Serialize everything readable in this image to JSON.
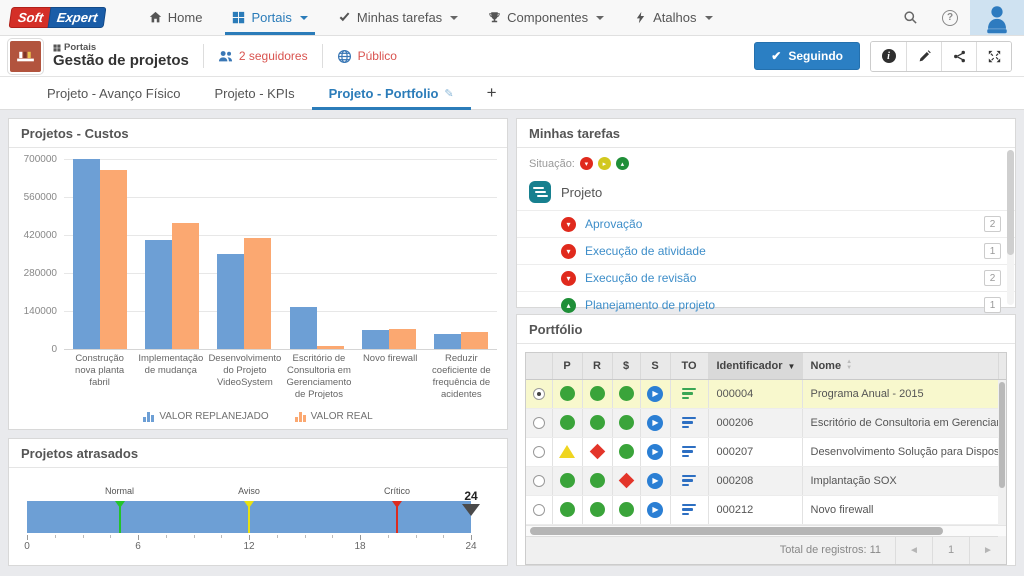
{
  "colors": {
    "accent_blue": "#2b7cb9",
    "series_blue": "#6d9fd5",
    "series_orange": "#fba871",
    "status_red": "#e02a1d",
    "status_yellow": "#d2c81e",
    "status_green": "#1f8f38",
    "selected_row_bg": "#f8f8cd",
    "link_blue": "#3e8ec9",
    "follow_btn_blue": "#2b7fc3",
    "logo_red": "#d42f27",
    "logo_blue": "#1a5da8"
  },
  "navbar": {
    "logo": {
      "soft": "Soft",
      "expert": "Expert"
    },
    "items": [
      {
        "label": "Home",
        "icon": "home-icon",
        "caret": false,
        "active": false
      },
      {
        "label": "Portais",
        "icon": "portals-grid-icon",
        "caret": true,
        "active": true
      },
      {
        "label": "Minhas tarefas",
        "icon": "check-icon",
        "caret": true,
        "active": false
      },
      {
        "label": "Componentes",
        "icon": "trophy-icon",
        "caret": true,
        "active": false
      },
      {
        "label": "Atalhos",
        "icon": "bolt-icon",
        "caret": true,
        "active": false
      }
    ],
    "right_icons": [
      "search-icon",
      "help-icon",
      "user-avatar"
    ]
  },
  "portal_header": {
    "breadcrumb_label": "Portais",
    "title": "Gestão de projetos",
    "followers_label": "2 seguidores",
    "visibility_label": "Público",
    "follow_button_label": "Seguindo",
    "action_icons": [
      "info-icon",
      "edit-pencil-icon",
      "share-icon",
      "expand-icon"
    ]
  },
  "tabs": {
    "items": [
      {
        "label": "Projeto - Avanço Físico",
        "active": false
      },
      {
        "label": "Projeto - KPIs",
        "active": false
      },
      {
        "label": "Projeto - Portfolio",
        "active": true,
        "editable": true
      }
    ],
    "add_label": "+"
  },
  "chart_data": [
    {
      "type": "bar",
      "title": "Projetos - Custos",
      "categories": [
        "Construção nova planta fabril",
        "Implementação de mudança",
        "Desenvolvimento do Projeto VideoSystem",
        "Escritório de Consultoria em Gerenciamento de Projetos",
        "Novo firewall",
        "Reduzir coeficiente de frequência de acidentes"
      ],
      "series": [
        {
          "name": "VALOR REPLANEJADO",
          "color": "#6d9fd5",
          "values": [
            700000,
            400000,
            350000,
            155000,
            70000,
            55000
          ]
        },
        {
          "name": "VALOR REAL",
          "color": "#fba871",
          "values": [
            660000,
            465000,
            410000,
            10000,
            75000,
            62000
          ]
        }
      ],
      "ylim": [
        0,
        700000
      ],
      "yticks": [
        0,
        140000,
        280000,
        420000,
        560000,
        700000
      ],
      "grid": true,
      "legend_position": "bottom"
    },
    {
      "type": "linear-gauge",
      "title": "Projetos atrasados",
      "min": 0,
      "max": 24,
      "value": 24,
      "xticks": [
        0,
        6,
        12,
        18,
        24
      ],
      "minor_tick_step": 1.5,
      "bar_color": "#6d9fd5",
      "thresholds": [
        {
          "label": "Normal",
          "value": 5,
          "color": "#22c32a"
        },
        {
          "label": "Aviso",
          "value": 12,
          "color": "#e8e214"
        },
        {
          "label": "Crítico",
          "value": 20,
          "color": "#dd2c1e"
        }
      ]
    }
  ],
  "tasks_panel": {
    "title": "Minhas tarefas",
    "situation_label": "Situação:",
    "situation_statuses": [
      "red",
      "yellow",
      "green"
    ],
    "group_icon": "project-badge-icon",
    "group_label": "Projeto",
    "items": [
      {
        "label": "Aprovação",
        "status": "red",
        "count": "2"
      },
      {
        "label": "Execução de atividade",
        "status": "red",
        "count": "1"
      },
      {
        "label": "Execução de revisão",
        "status": "red",
        "count": "2"
      },
      {
        "label": "Planejamento de projeto",
        "status": "green",
        "count": "1"
      }
    ]
  },
  "portfolio_panel": {
    "title": "Portfólio",
    "columns": [
      "",
      "P",
      "R",
      "$",
      "S",
      "TO",
      "Identificador",
      "Nome"
    ],
    "sorted_column": "Identificador",
    "rows": [
      {
        "selected": true,
        "p": "green-circle",
        "r": "green-circle",
        "dollar": "green-circle",
        "s": "play",
        "to": "bars-green",
        "id": "000004",
        "nome": "Programa Anual - 2015"
      },
      {
        "selected": false,
        "p": "green-circle",
        "r": "green-circle",
        "dollar": "green-circle",
        "s": "play",
        "to": "bars-blue",
        "id": "000206",
        "nome": "Escritório de Consultoria em Gerenciamento de Projetos"
      },
      {
        "selected": false,
        "p": "yellow-triangle",
        "r": "red-diamond",
        "dollar": "green-circle",
        "s": "play",
        "to": "bars-blue",
        "id": "000207",
        "nome": "Desenvolvimento Solução para Dispositivos Móveis"
      },
      {
        "selected": false,
        "p": "green-circle",
        "r": "green-circle",
        "dollar": "red-diamond",
        "s": "play",
        "to": "bars-blue",
        "id": "000208",
        "nome": "Implantação SOX"
      },
      {
        "selected": false,
        "p": "green-circle",
        "r": "green-circle",
        "dollar": "green-circle",
        "s": "play",
        "to": "bars-blue",
        "id": "000212",
        "nome": "Novo firewall"
      }
    ],
    "footer": {
      "total_label": "Total de registros: 11",
      "page": "1",
      "prev_icon": "page-prev-icon",
      "next_icon": "page-next-icon"
    }
  }
}
